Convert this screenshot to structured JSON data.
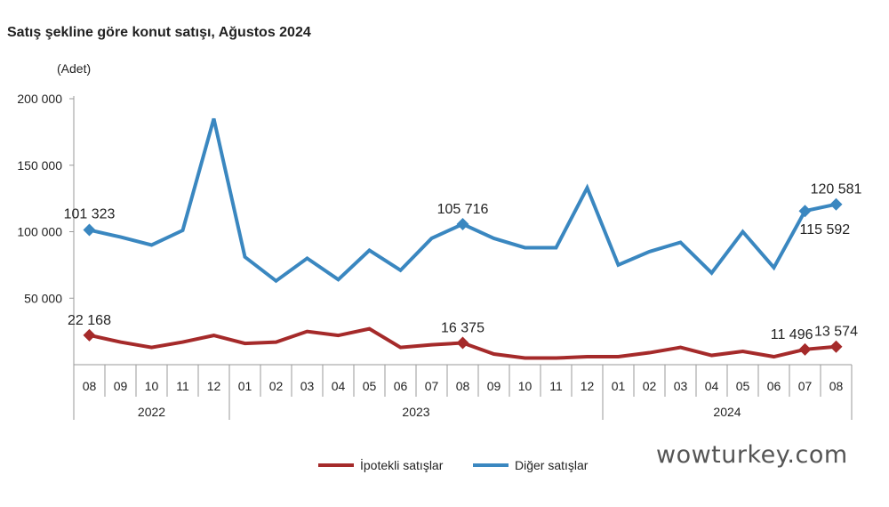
{
  "chart_data": {
    "type": "line",
    "title": "Satış şekline göre konut satışı, Ağustos 2024",
    "ylabel": "(Adet)",
    "ylim": [
      0,
      200000
    ],
    "yticks": [
      "200 000",
      "150 000",
      "100 000",
      "50 000"
    ],
    "ytick_values": [
      200000,
      150000,
      100000,
      50000
    ],
    "categories": [
      "08",
      "09",
      "10",
      "11",
      "12",
      "01",
      "02",
      "03",
      "04",
      "05",
      "06",
      "07",
      "08",
      "09",
      "10",
      "11",
      "12",
      "01",
      "02",
      "03",
      "04",
      "05",
      "06",
      "07",
      "08"
    ],
    "years": [
      {
        "label": "2022",
        "start": 0,
        "end": 4
      },
      {
        "label": "2023",
        "start": 5,
        "end": 16
      },
      {
        "label": "2024",
        "start": 17,
        "end": 24
      }
    ],
    "legend_position": "bottom",
    "grid": false,
    "series": [
      {
        "name": "İpotekli satışlar",
        "color": "#a52a2a",
        "values": [
          22168,
          17000,
          13000,
          17000,
          22000,
          16000,
          17000,
          25000,
          22000,
          27000,
          13000,
          15000,
          16375,
          8000,
          5000,
          5000,
          6000,
          6000,
          9000,
          13000,
          7000,
          10000,
          6000,
          11496,
          13574
        ],
        "labels": [
          {
            "index": 0,
            "text": "22 168",
            "pos": "above"
          },
          {
            "index": 12,
            "text": "16 375",
            "pos": "above"
          },
          {
            "index": 23,
            "text": "11 496",
            "pos": "above-left"
          },
          {
            "index": 24,
            "text": "13 574",
            "pos": "above"
          }
        ]
      },
      {
        "name": "Diğer satışlar",
        "color": "#3a87c0",
        "values": [
          101323,
          96000,
          90000,
          101000,
          185000,
          81000,
          63000,
          80000,
          64000,
          86000,
          71000,
          95000,
          105716,
          95000,
          88000,
          88000,
          133000,
          75000,
          85000,
          92000,
          69000,
          100000,
          73000,
          115592,
          120581
        ],
        "labels": [
          {
            "index": 0,
            "text": "101 323",
            "pos": "above"
          },
          {
            "index": 12,
            "text": "105 716",
            "pos": "above"
          },
          {
            "index": 23,
            "text": "115 592",
            "pos": "below"
          },
          {
            "index": 24,
            "text": "120 581",
            "pos": "above"
          }
        ]
      }
    ]
  },
  "watermark": "wowturkey.com"
}
